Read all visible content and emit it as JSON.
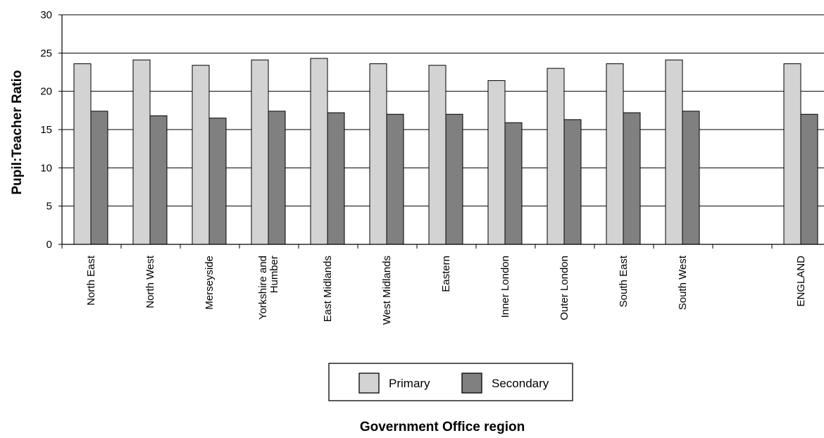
{
  "chart_data": {
    "type": "bar",
    "ylabel": "Pupil:Teacher Ratio",
    "xlabel": "Government Office region",
    "ylim": [
      0,
      30
    ],
    "yticks": [
      0,
      5,
      10,
      15,
      20,
      25,
      30
    ],
    "grid": true,
    "legend_position": "bottom-center",
    "categories": [
      "North East",
      "North West",
      "Merseyside",
      "Yorkshire and Humber",
      "East Midlands",
      "West Midlands",
      "Eastern",
      "Inner London",
      "Outer London",
      "South East",
      "South West",
      "",
      "ENGLAND"
    ],
    "series": [
      {
        "name": "Primary",
        "color": "#d3d3d3",
        "values": [
          23.6,
          24.1,
          23.4,
          24.1,
          24.3,
          23.6,
          23.4,
          21.4,
          23.0,
          23.6,
          24.1,
          null,
          23.6
        ]
      },
      {
        "name": "Secondary",
        "color": "#808080",
        "values": [
          17.4,
          16.8,
          16.5,
          17.4,
          17.2,
          17.0,
          17.0,
          15.9,
          16.3,
          17.2,
          17.4,
          null,
          17.0
        ]
      }
    ]
  }
}
